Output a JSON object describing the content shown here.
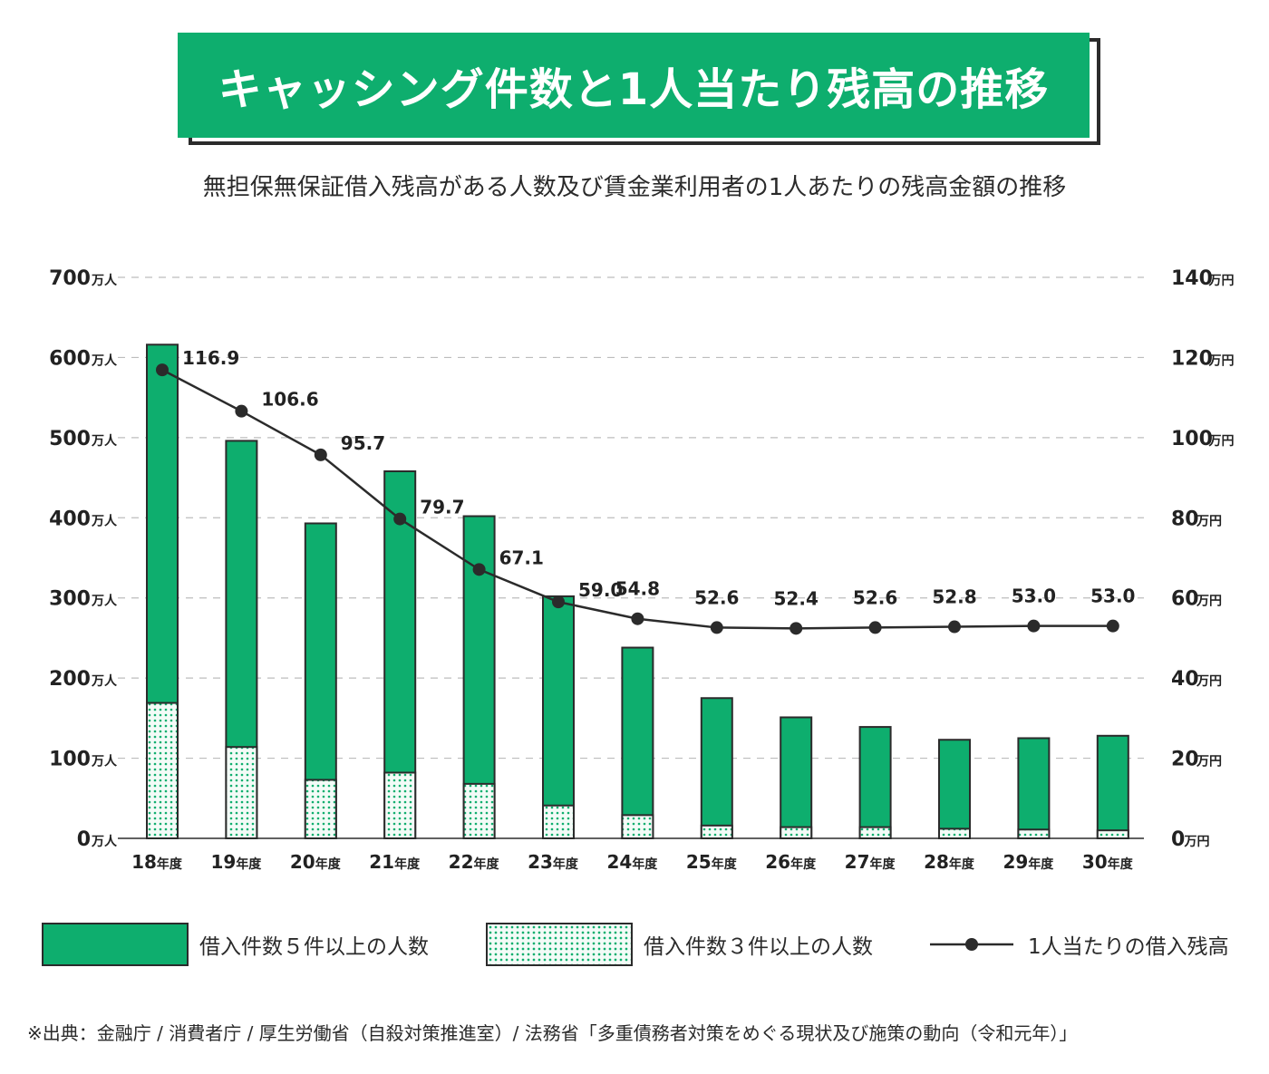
{
  "title": "キャッシング件数と1人当たり残高の推移",
  "subtitle": "無担保無保証借入残高がある人数及び賃金業利用者の1人あたりの残高金額の推移",
  "source": "※出典：金融庁 / 消費者庁 / 厚生労働省（自殺対策推進室）/ 法務省「多重債務者対策をめぐる現状及び施策の動向（令和元年）」",
  "colors": {
    "accent": "#0eae6e",
    "line": "#2b2b2b",
    "grid": "#bdbdbd"
  },
  "legend": {
    "solid": "借入件数５件以上の人数",
    "dotted": "借入件数３件以上の人数",
    "line": "1人当たりの借入残高"
  },
  "chart_data": {
    "type": "bar",
    "categories": [
      "18年度",
      "19年度",
      "20年度",
      "21年度",
      "22年度",
      "23年度",
      "24年度",
      "25年度",
      "26年度",
      "27年度",
      "28年度",
      "29年度",
      "30年度"
    ],
    "left_axis": {
      "ylim": [
        0,
        700
      ],
      "ticks": [
        0,
        100,
        200,
        300,
        400,
        500,
        600,
        700
      ],
      "tick_labels": [
        "0",
        "100",
        "200",
        "300",
        "400",
        "500",
        "600",
        "700"
      ],
      "unit": "万人"
    },
    "right_axis": {
      "ylim": [
        0,
        140
      ],
      "ticks": [
        0,
        20,
        40,
        60,
        80,
        100,
        120,
        140
      ],
      "tick_labels": [
        "0",
        "20",
        "40",
        "60",
        "80",
        "100",
        "120",
        "140"
      ],
      "unit": "万円"
    },
    "grid": true,
    "legend_position": "bottom",
    "series": [
      {
        "name": "借入件数５件以上の人数",
        "kind": "bar",
        "style": "solid",
        "axis": "left",
        "values": [
          616,
          496,
          393,
          458,
          402,
          302,
          238,
          175,
          151,
          139,
          123,
          125,
          128
        ]
      },
      {
        "name": "借入件数３件以上の人数",
        "kind": "bar",
        "style": "dotted",
        "axis": "left",
        "values": [
          169,
          114,
          73,
          82,
          68,
          41,
          29,
          16,
          14,
          14,
          12,
          11,
          10
        ]
      },
      {
        "name": "1人当たりの借入残高",
        "kind": "line",
        "axis": "right",
        "values": [
          116.9,
          106.6,
          95.7,
          79.7,
          67.1,
          59.0,
          54.8,
          52.6,
          52.4,
          52.6,
          52.8,
          53.0,
          53.0
        ],
        "labels": [
          "116.9",
          "106.6",
          "95.7",
          "79.7",
          "67.1",
          "59.0",
          "54.8",
          "52.6",
          "52.4",
          "52.6",
          "52.8",
          "53.0",
          "53.0"
        ]
      }
    ]
  }
}
